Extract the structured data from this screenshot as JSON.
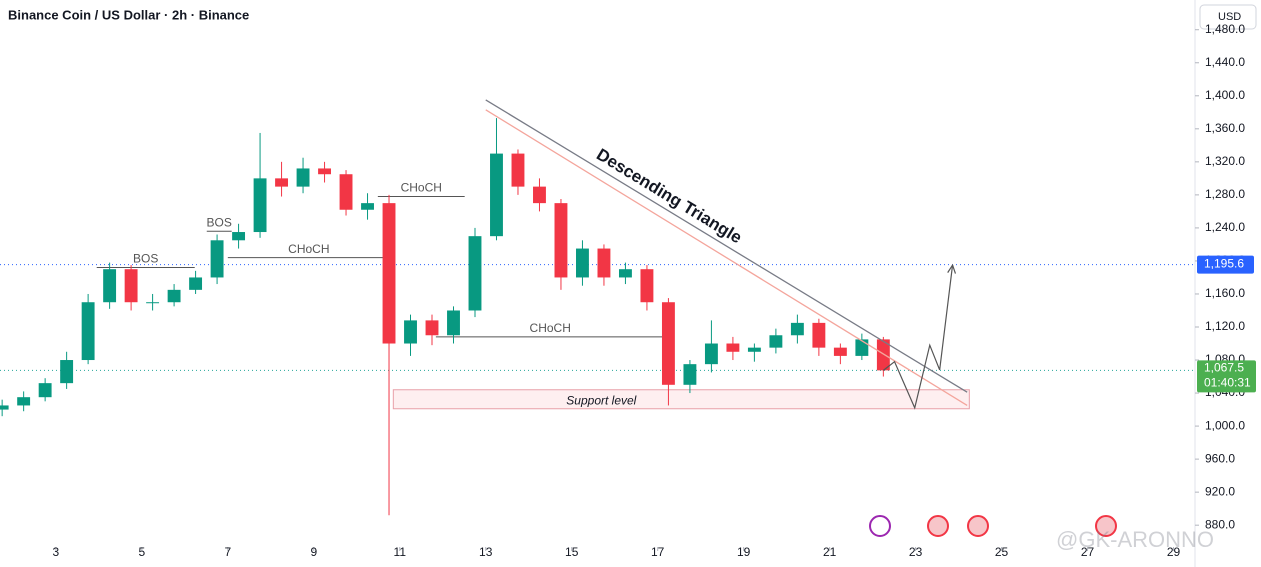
{
  "chart_data": {
    "type": "candlestick",
    "title": "Binance Coin / US Dollar · 2h · Binance",
    "currency": "USD",
    "watermark": "@GK-ARONNO",
    "colors": {
      "up": "#089981",
      "down": "#f23645"
    },
    "xlim": [
      1.7,
      29.5
    ],
    "xticks": [
      3,
      5,
      7,
      9,
      11,
      13,
      15,
      17,
      19,
      21,
      23,
      25,
      27,
      29
    ],
    "ylim": [
      856,
      1516
    ],
    "yticks": [
      {
        "value": 880,
        "label": "880.0"
      },
      {
        "value": 920,
        "label": "920.0"
      },
      {
        "value": 960,
        "label": "960.0"
      },
      {
        "value": 1000,
        "label": "1,000.0"
      },
      {
        "value": 1040,
        "label": "1,040.0"
      },
      {
        "value": 1080,
        "label": "1,080.0"
      },
      {
        "value": 1120,
        "label": "1,120.0"
      },
      {
        "value": 1160,
        "label": "1,160.0"
      },
      {
        "value": 1200,
        "label": "1,200.0"
      },
      {
        "value": 1240,
        "label": "1,240.0"
      },
      {
        "value": 1280,
        "label": "1,280.0"
      },
      {
        "value": 1320,
        "label": "1,320.0"
      },
      {
        "value": 1360,
        "label": "1,360.0"
      },
      {
        "value": 1400,
        "label": "1,400.0"
      },
      {
        "value": 1440,
        "label": "1,440.0"
      },
      {
        "value": 1480,
        "label": "1,480.0"
      }
    ],
    "candles": {
      "x": [
        1.75,
        2.25,
        2.75,
        3.25,
        3.75,
        4.25,
        4.75,
        5.25,
        5.75,
        6.25,
        6.75,
        7.25,
        7.75,
        8.25,
        8.75,
        9.25,
        9.75,
        10.25,
        10.75,
        11.25,
        11.75,
        12.25,
        12.75,
        13.25,
        13.75,
        14.25,
        14.75,
        15.25,
        15.75,
        16.25,
        16.75,
        17.25,
        17.75,
        18.25,
        18.75,
        19.25,
        19.75,
        20.25,
        20.75,
        21.25,
        21.75,
        22.25
      ],
      "open": [
        1020,
        1025,
        1035,
        1052,
        1080,
        1150,
        1190,
        1150,
        1150,
        1165,
        1180,
        1225,
        1235,
        1300,
        1290,
        1312,
        1305,
        1262,
        1270,
        1100,
        1128,
        1110,
        1140,
        1230,
        1330,
        1290,
        1270,
        1180,
        1215,
        1180,
        1190,
        1150,
        1050,
        1075,
        1100,
        1090,
        1095,
        1110,
        1125,
        1095,
        1085,
        1105
      ],
      "high": [
        1032,
        1042,
        1058,
        1090,
        1160,
        1198,
        1195,
        1160,
        1172,
        1188,
        1232,
        1245,
        1355,
        1320,
        1325,
        1320,
        1310,
        1282,
        1280,
        1135,
        1135,
        1145,
        1240,
        1373,
        1335,
        1300,
        1275,
        1225,
        1220,
        1198,
        1195,
        1155,
        1080,
        1128,
        1108,
        1100,
        1118,
        1135,
        1130,
        1100,
        1112,
        1108
      ],
      "low": [
        1012,
        1018,
        1030,
        1045,
        1075,
        1142,
        1140,
        1140,
        1145,
        1160,
        1172,
        1215,
        1228,
        1278,
        1282,
        1295,
        1255,
        1250,
        892,
        1085,
        1098,
        1100,
        1132,
        1225,
        1280,
        1260,
        1165,
        1170,
        1170,
        1172,
        1140,
        1025,
        1040,
        1065,
        1080,
        1078,
        1088,
        1100,
        1085,
        1075,
        1080,
        1060
      ],
      "close": [
        1025,
        1035,
        1052,
        1080,
        1150,
        1190,
        1150,
        1150,
        1165,
        1180,
        1225,
        1235,
        1300,
        1290,
        1312,
        1305,
        1262,
        1270,
        1100,
        1128,
        1110,
        1140,
        1230,
        1330,
        1290,
        1270,
        1180,
        1215,
        1180,
        1190,
        1150,
        1050,
        1075,
        1100,
        1090,
        1095,
        1110,
        1125,
        1095,
        1085,
        1105,
        1067.5
      ]
    },
    "structure": [
      {
        "text": "BOS",
        "value": 1192,
        "from": 3.95,
        "to": 6.23
      },
      {
        "text": "BOS",
        "value": 1236,
        "from": 6.51,
        "to": 7.09
      },
      {
        "text": "CHoCH",
        "value": 1204,
        "from": 7.0,
        "to": 10.77
      },
      {
        "text": "CHoCH",
        "value": 1278,
        "from": 10.49,
        "to": 12.51
      },
      {
        "text": "CHoCH",
        "value": 1108,
        "from": 11.84,
        "to": 17.16
      }
    ],
    "pattern": {
      "text": "Descending Triangle",
      "upper": {
        "x": [
          13,
          24.2
        ],
        "y": [
          1395,
          1041
        ]
      },
      "lower": {
        "x": [
          13,
          24.2
        ],
        "y": [
          1383,
          1025
        ]
      }
    },
    "support": {
      "text": "Support level",
      "from": 10.85,
      "to": 24.25,
      "top": 1044,
      "bottom": 1021
    },
    "projection": {
      "x": [
        22.25,
        22.51,
        22.98,
        23.33,
        23.56,
        23.86
      ],
      "y": [
        1067.5,
        1078,
        1022,
        1098,
        1068,
        1195
      ]
    },
    "alert_level": {
      "value": 1195.6,
      "label": "1,195.6"
    },
    "last_price": {
      "value": 1067.5,
      "label": "1,067.5",
      "countdown": "01:40:31"
    }
  }
}
